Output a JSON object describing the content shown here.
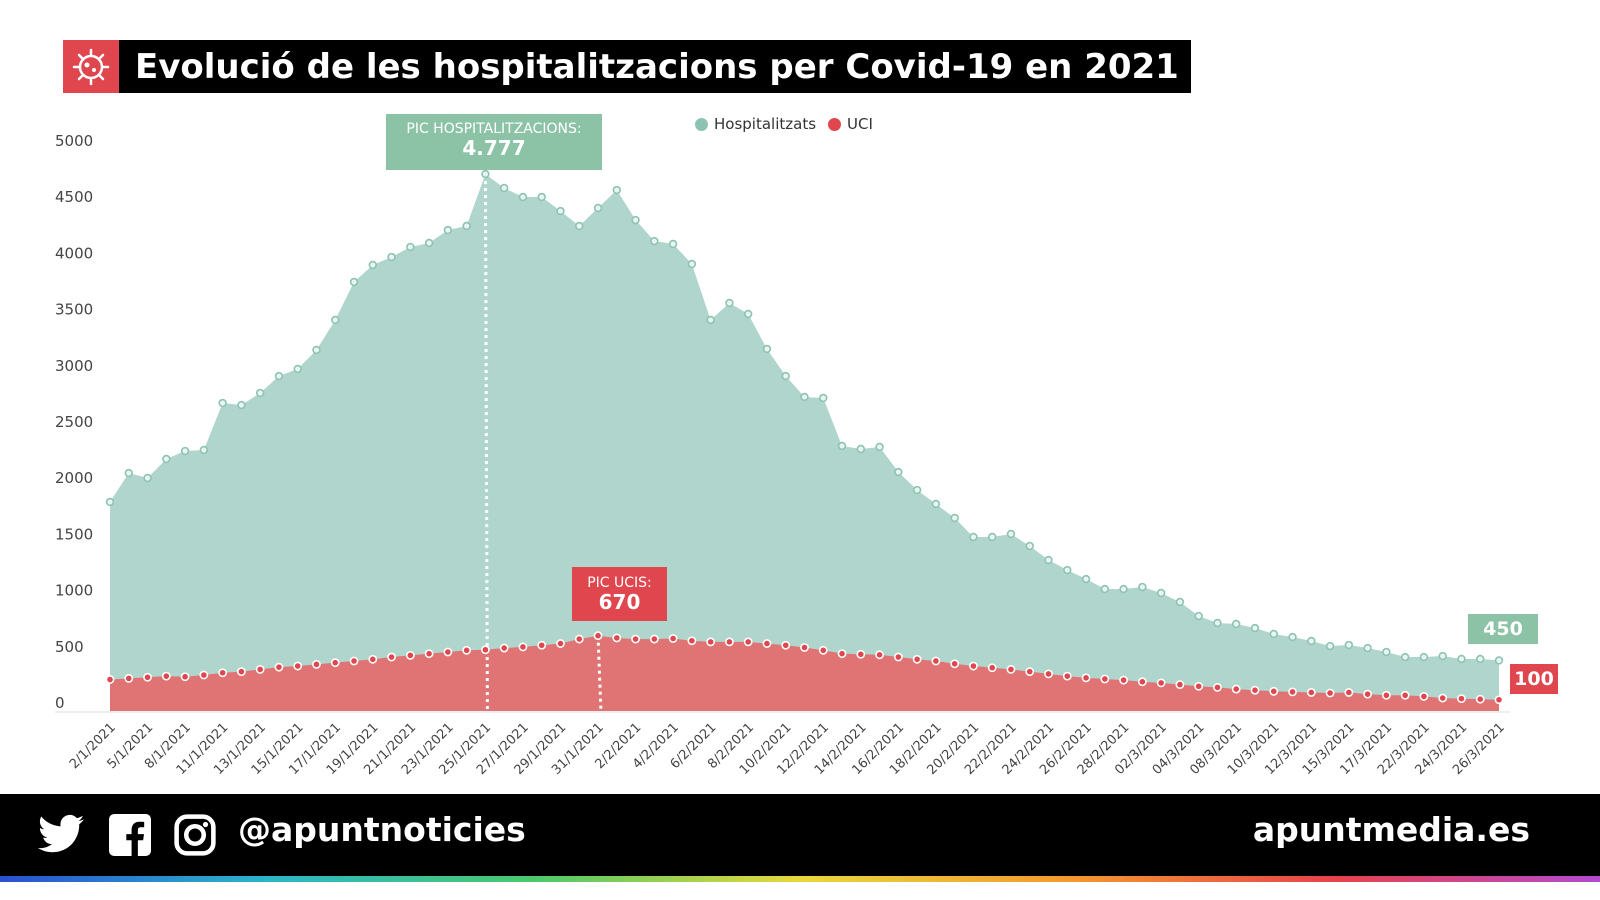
{
  "title": "Evolució de les hospitalitzacions per Covid-19 en 2021",
  "footer": {
    "handle": "@apuntnoticies",
    "site": "apuntmedia.es",
    "icons": [
      "twitter-icon",
      "facebook-icon",
      "instagram-icon"
    ]
  },
  "colors": {
    "hospital_area": "#b0d5cc",
    "hospital_line": "#8cc3b3",
    "uci_area": "#e07474",
    "uci_dot": "#e0464e",
    "annotation_green": "#8cc3a6",
    "annotation_red": "#e0464e"
  },
  "chart_data": {
    "type": "area",
    "title": "Evolució de les hospitalitzacions per Covid-19 en 2021",
    "ylim": [
      0,
      5000
    ],
    "yticks": [
      0,
      500,
      1000,
      1500,
      2000,
      2500,
      3000,
      3500,
      4000,
      4500,
      5000
    ],
    "legend_placement": "top-center",
    "grid": false,
    "x_tick_labels": [
      "2/1/2021",
      "5/1/2021",
      "8/1/2021",
      "11/1/2021",
      "13/1/2021",
      "15/1/2021",
      "17/1/2021",
      "19/1/2021",
      "21/1/2021",
      "23/1/2021",
      "25/1/2021",
      "27/1/2021",
      "29/1/2021",
      "31/1/2021",
      "2/2/2021",
      "4/2/2021",
      "6/2/2021",
      "8/2/2021",
      "10/2/2021",
      "12/2/2021",
      "14/2/2021",
      "16/2/2021",
      "18/2/2021",
      "20/2/2021",
      "22/2/2021",
      "24/2/2021",
      "26/2/2021",
      "28/2/2021",
      "02/3/2021",
      "04/3/2021",
      "08/3/2021",
      "10/3/2021",
      "12/3/2021",
      "15/3/2021",
      "17/3/2021",
      "22/3/2021",
      "24/3/2021",
      "26/3/2021"
    ],
    "series": [
      {
        "name": "Hospitalitzats",
        "values": [
          1860,
          2117,
          2073,
          2242,
          2313,
          2322,
          2740,
          2722,
          2829,
          2980,
          3043,
          3212,
          3479,
          3817,
          3968,
          4039,
          4128,
          4164,
          4279,
          4315,
          4777,
          4653,
          4573,
          4573,
          4448,
          4315,
          4475,
          4635,
          4368,
          4181,
          4155,
          3977,
          3479,
          3630,
          3532,
          3221,
          2980,
          2794,
          2785,
          2358,
          2331,
          2349,
          2126,
          1966,
          1842,
          1717,
          1548,
          1548,
          1575,
          1468,
          1343,
          1254,
          1174,
          1085,
          1085,
          1103,
          1050,
          970,
          845,
          783,
          774,
          738,
          685,
          658,
          623,
          578,
          587,
          560,
          525,
          480,
          480,
          489,
          463,
          463,
          450
        ]
      },
      {
        "name": "UCI",
        "values": [
          280,
          290,
          300,
          310,
          305,
          320,
          340,
          350,
          370,
          390,
          400,
          415,
          430,
          445,
          460,
          480,
          495,
          510,
          525,
          540,
          545,
          560,
          570,
          585,
          600,
          640,
          670,
          650,
          640,
          640,
          645,
          625,
          615,
          615,
          615,
          600,
          585,
          565,
          540,
          510,
          505,
          500,
          480,
          460,
          445,
          420,
          400,
          385,
          370,
          350,
          330,
          310,
          295,
          285,
          275,
          260,
          250,
          235,
          220,
          210,
          195,
          185,
          175,
          170,
          165,
          160,
          165,
          150,
          140,
          140,
          130,
          115,
          110,
          105,
          100
        ]
      }
    ],
    "annotations": [
      {
        "label": "PIC HOSPITALITZACIONS:",
        "value": "4.777",
        "index": 20
      },
      {
        "label": "PIC UCIS:",
        "value": "670",
        "index": 26
      },
      {
        "value": "450",
        "series": "Hospitalitzats",
        "index": 74
      },
      {
        "value": "100",
        "series": "UCI",
        "index": 74
      }
    ]
  }
}
